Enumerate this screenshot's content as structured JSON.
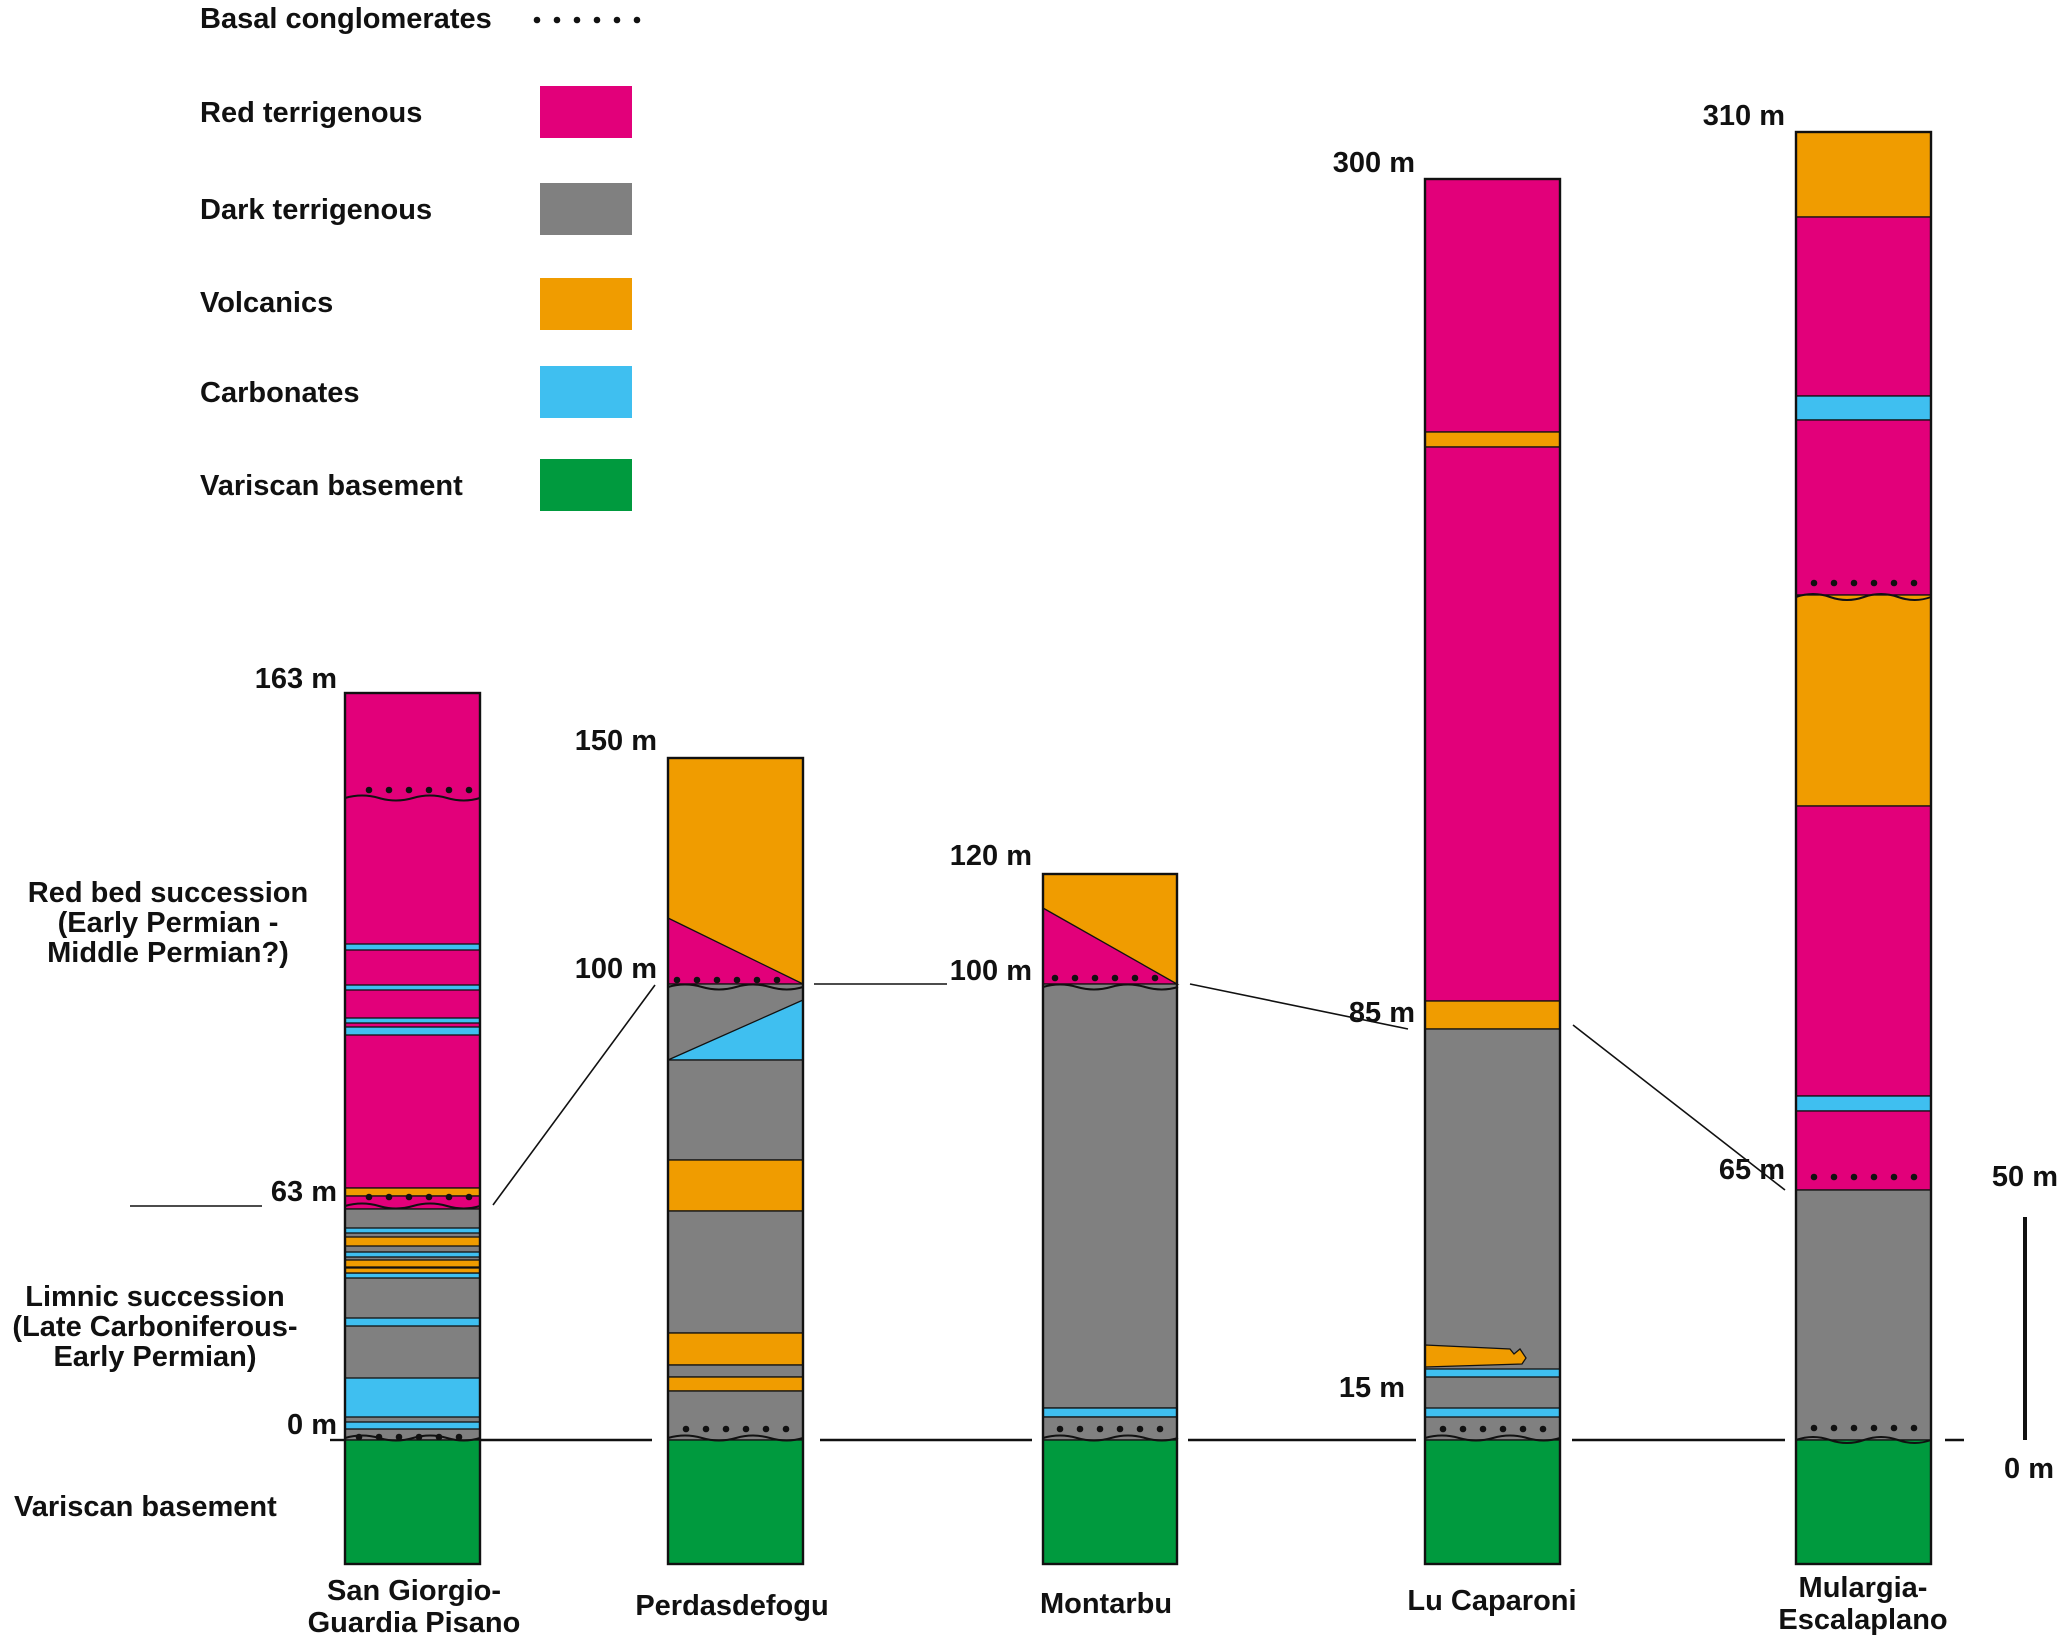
{
  "legend": {
    "conglomerates_label": "Basal conglomerates",
    "items": [
      {
        "key": "red",
        "label": "Red terrigenous",
        "color": "#e2007a"
      },
      {
        "key": "dark",
        "label": "Dark terrigenous",
        "color": "#808080"
      },
      {
        "key": "volc",
        "label": "Volcanics",
        "color": "#f09c00"
      },
      {
        "key": "carb",
        "label": "Carbonates",
        "color": "#3fbff0"
      },
      {
        "key": "base",
        "label": "Variscan basement",
        "color": "#009a3e"
      }
    ]
  },
  "side_labels": {
    "red_bed": [
      "Red bed succession",
      "(Early Permian -",
      "Middle Permian?)"
    ],
    "limnic": [
      "Limnic succession",
      "(Late Carboniferous-",
      "Early Permian)"
    ],
    "basement": "Variscan basement"
  },
  "scale_bar": {
    "top_label": "50 m",
    "bottom_label": "0 m"
  },
  "columns": [
    {
      "name": [
        "San Giorgio-",
        "Guardia Pisano"
      ],
      "labels": [
        "163 m",
        "63 m",
        "0 m"
      ]
    },
    {
      "name": [
        "Perdasdefogu"
      ],
      "labels": [
        "150 m",
        "100 m"
      ]
    },
    {
      "name": [
        "Montarbu"
      ],
      "labels": [
        "120 m",
        "100 m"
      ]
    },
    {
      "name": [
        "Lu Caparoni"
      ],
      "labels": [
        "300 m",
        "85 m",
        "15 m"
      ]
    },
    {
      "name": [
        "Mulargia-",
        "Escalaplano"
      ],
      "labels": [
        "310 m",
        "65 m"
      ]
    }
  ]
}
